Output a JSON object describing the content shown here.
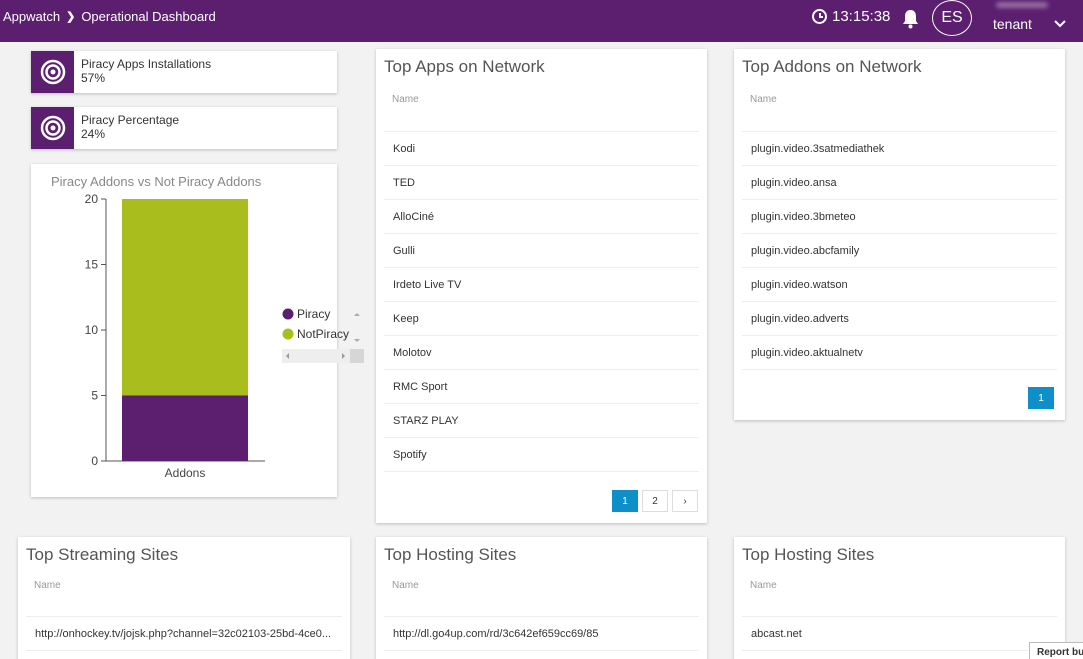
{
  "header": {
    "app": "Appwatch",
    "page": "Operational Dashboard",
    "time": "13:15:38",
    "initials": "ES",
    "tenant": "tenant"
  },
  "stats": [
    {
      "label": "Piracy Apps Installations",
      "value": "57%"
    },
    {
      "label": "Piracy Percentage",
      "value": "24%"
    }
  ],
  "chart_data": {
    "type": "bar",
    "stacked": true,
    "title": "Piracy Addons vs Not Piracy Addons",
    "categories": [
      "Addons"
    ],
    "series": [
      {
        "name": "Piracy",
        "values": [
          5
        ],
        "color": "#5c1f70"
      },
      {
        "name": "NotPiracy",
        "values": [
          15
        ],
        "color": "#a9bd1c"
      }
    ],
    "ylim": [
      0,
      20
    ],
    "yticks": [
      "0",
      "5",
      "10",
      "15",
      "20"
    ],
    "legend": "right"
  },
  "top_apps": {
    "title": "Top Apps on Network",
    "column": "Name",
    "rows": [
      "Kodi",
      "TED",
      "AlloCiné",
      "Gulli",
      "Irdeto Live TV",
      "Keep",
      "Molotov",
      "RMC Sport",
      "STARZ PLAY",
      "Spotify"
    ],
    "pages": [
      "1",
      "2",
      "›"
    ]
  },
  "top_addons": {
    "title": "Top Addons on Network",
    "column": "Name",
    "rows": [
      "plugin.video.3satmediathek",
      "plugin.video.ansa",
      "plugin.video.3bmeteo",
      "plugin.video.abcfamily",
      "plugin.video.watson",
      "plugin.video.adverts",
      "plugin.video.aktualnetv"
    ],
    "pages": [
      "1"
    ]
  },
  "streaming": {
    "title": "Top Streaming Sites",
    "column": "Name",
    "rows": [
      "http://onhockey.tv/jojsk.php?channel=32c02103-25bd-4ce0..."
    ]
  },
  "hosting1": {
    "title": "Top Hosting Sites",
    "column": "Name",
    "rows": [
      "http://dl.go4up.com/rd/3c642ef659cc69/85"
    ]
  },
  "hosting2": {
    "title": "Top Hosting Sites",
    "column": "Name",
    "rows": [
      "abcast.net"
    ]
  },
  "report": "Report bug"
}
